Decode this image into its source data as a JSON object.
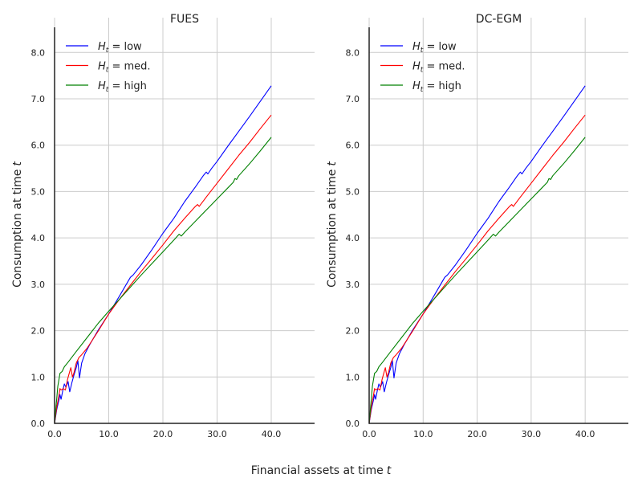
{
  "chart_data": {
    "type": "line",
    "xlabel": "Financial assets at time",
    "xlabel_var": "t",
    "ylabel": "Consumption at time",
    "ylabel_var": "t",
    "xlim": [
      0,
      48
    ],
    "ylim": [
      0,
      8.75
    ],
    "x_ticks": [
      0,
      10,
      20,
      30,
      40
    ],
    "y_ticks": [
      0,
      1,
      2,
      3,
      4,
      5,
      6,
      7,
      8
    ],
    "grid": true,
    "legend_location": "top-left",
    "panels": [
      {
        "title": "FUES",
        "series": [
          {
            "name": "low",
            "legend_prefix": "H",
            "legend_sub": "t",
            "legend_eq": " = ",
            "color": "#0000ff",
            "points": [
              [
                0,
                0
              ],
              [
                0.4,
                0.3
              ],
              [
                0.8,
                0.5
              ],
              [
                1.0,
                0.62
              ],
              [
                1.2,
                0.52
              ],
              [
                1.5,
                0.7
              ],
              [
                1.8,
                0.85
              ],
              [
                2.1,
                0.78
              ],
              [
                2.5,
                0.9
              ],
              [
                2.8,
                0.68
              ],
              [
                3.2,
                0.88
              ],
              [
                3.6,
                1.05
              ],
              [
                4.0,
                1.2
              ],
              [
                4.3,
                1.35
              ],
              [
                4.6,
                0.98
              ],
              [
                5.0,
                1.3
              ],
              [
                5.6,
                1.5
              ],
              [
                6.5,
                1.7
              ],
              [
                8,
                2.0
              ],
              [
                10,
                2.36
              ],
              [
                12,
                2.75
              ],
              [
                14,
                3.15
              ],
              [
                14.5,
                3.2
              ],
              [
                16,
                3.42
              ],
              [
                18,
                3.75
              ],
              [
                20,
                4.1
              ],
              [
                22,
                4.42
              ],
              [
                24,
                4.78
              ],
              [
                26,
                5.1
              ],
              [
                27.5,
                5.35
              ],
              [
                28,
                5.42
              ],
              [
                28.3,
                5.38
              ],
              [
                29,
                5.5
              ],
              [
                30,
                5.65
              ],
              [
                32,
                5.98
              ],
              [
                34,
                6.3
              ],
              [
                36,
                6.62
              ],
              [
                38,
                6.95
              ],
              [
                40,
                7.28
              ]
            ]
          },
          {
            "name": "med.",
            "legend_prefix": "H",
            "legend_sub": "t",
            "legend_eq": " = ",
            "color": "#ff0000",
            "points": [
              [
                0,
                0
              ],
              [
                0.4,
                0.35
              ],
              [
                0.8,
                0.6
              ],
              [
                1.0,
                0.75
              ],
              [
                1.2,
                0.72
              ],
              [
                1.6,
                0.75
              ],
              [
                2.0,
                0.72
              ],
              [
                2.4,
                0.95
              ],
              [
                2.8,
                1.12
              ],
              [
                3.0,
                1.2
              ],
              [
                3.3,
                1.0
              ],
              [
                3.6,
                1.1
              ],
              [
                4.0,
                1.3
              ],
              [
                4.5,
                1.42
              ],
              [
                5,
                1.48
              ],
              [
                6,
                1.62
              ],
              [
                8,
                1.98
              ],
              [
                10,
                2.36
              ],
              [
                12,
                2.68
              ],
              [
                14,
                2.98
              ],
              [
                16,
                3.28
              ],
              [
                18,
                3.56
              ],
              [
                20,
                3.85
              ],
              [
                22,
                4.15
              ],
              [
                24,
                4.42
              ],
              [
                26,
                4.68
              ],
              [
                26.4,
                4.72
              ],
              [
                26.7,
                4.68
              ],
              [
                28,
                4.88
              ],
              [
                30,
                5.18
              ],
              [
                32,
                5.48
              ],
              [
                34,
                5.78
              ],
              [
                36,
                6.06
              ],
              [
                38,
                6.36
              ],
              [
                40,
                6.65
              ]
            ]
          },
          {
            "name": "high",
            "legend_prefix": "H",
            "legend_sub": "t",
            "legend_eq": " = ",
            "color": "#008000",
            "points": [
              [
                0,
                0
              ],
              [
                0.3,
                0.4
              ],
              [
                0.6,
                0.8
              ],
              [
                1.0,
                1.08
              ],
              [
                1.4,
                1.12
              ],
              [
                1.8,
                1.22
              ],
              [
                2.5,
                1.32
              ],
              [
                4,
                1.55
              ],
              [
                6,
                1.85
              ],
              [
                8,
                2.15
              ],
              [
                10,
                2.42
              ],
              [
                12,
                2.68
              ],
              [
                14,
                2.94
              ],
              [
                16,
                3.2
              ],
              [
                18,
                3.45
              ],
              [
                20,
                3.7
              ],
              [
                22,
                3.95
              ],
              [
                23,
                4.08
              ],
              [
                23.4,
                4.04
              ],
              [
                24,
                4.12
              ],
              [
                26,
                4.36
              ],
              [
                28,
                4.6
              ],
              [
                30,
                4.84
              ],
              [
                32,
                5.08
              ],
              [
                33,
                5.2
              ],
              [
                33.3,
                5.28
              ],
              [
                33.6,
                5.26
              ],
              [
                34,
                5.34
              ],
              [
                36,
                5.6
              ],
              [
                38,
                5.88
              ],
              [
                40,
                6.17
              ]
            ]
          }
        ]
      },
      {
        "title": "DC-EGM",
        "series": [
          {
            "name": "low",
            "legend_prefix": "H",
            "legend_sub": "t",
            "legend_eq": " = ",
            "color": "#0000ff",
            "points": [
              [
                0,
                0
              ],
              [
                0.4,
                0.3
              ],
              [
                0.8,
                0.5
              ],
              [
                1.0,
                0.62
              ],
              [
                1.2,
                0.52
              ],
              [
                1.5,
                0.7
              ],
              [
                1.8,
                0.85
              ],
              [
                2.1,
                0.78
              ],
              [
                2.5,
                0.9
              ],
              [
                2.8,
                0.68
              ],
              [
                3.2,
                0.88
              ],
              [
                3.6,
                1.05
              ],
              [
                4.0,
                1.2
              ],
              [
                4.3,
                1.35
              ],
              [
                4.6,
                0.98
              ],
              [
                5.0,
                1.3
              ],
              [
                5.6,
                1.5
              ],
              [
                6.5,
                1.7
              ],
              [
                8,
                2.0
              ],
              [
                10,
                2.36
              ],
              [
                12,
                2.75
              ],
              [
                14,
                3.15
              ],
              [
                14.5,
                3.2
              ],
              [
                16,
                3.42
              ],
              [
                18,
                3.75
              ],
              [
                20,
                4.1
              ],
              [
                22,
                4.42
              ],
              [
                24,
                4.78
              ],
              [
                26,
                5.1
              ],
              [
                27.5,
                5.35
              ],
              [
                28,
                5.42
              ],
              [
                28.3,
                5.38
              ],
              [
                29,
                5.5
              ],
              [
                30,
                5.65
              ],
              [
                32,
                5.98
              ],
              [
                34,
                6.3
              ],
              [
                36,
                6.62
              ],
              [
                38,
                6.95
              ],
              [
                40,
                7.28
              ]
            ]
          },
          {
            "name": "med.",
            "legend_prefix": "H",
            "legend_sub": "t",
            "legend_eq": " = ",
            "color": "#ff0000",
            "points": [
              [
                0,
                0
              ],
              [
                0.4,
                0.35
              ],
              [
                0.8,
                0.6
              ],
              [
                1.0,
                0.75
              ],
              [
                1.2,
                0.72
              ],
              [
                1.6,
                0.75
              ],
              [
                2.0,
                0.72
              ],
              [
                2.4,
                0.95
              ],
              [
                2.8,
                1.12
              ],
              [
                3.0,
                1.2
              ],
              [
                3.3,
                1.0
              ],
              [
                3.6,
                1.1
              ],
              [
                4.0,
                1.3
              ],
              [
                4.5,
                1.42
              ],
              [
                5,
                1.48
              ],
              [
                6,
                1.62
              ],
              [
                8,
                1.98
              ],
              [
                10,
                2.36
              ],
              [
                12,
                2.68
              ],
              [
                14,
                2.98
              ],
              [
                16,
                3.28
              ],
              [
                18,
                3.56
              ],
              [
                20,
                3.85
              ],
              [
                22,
                4.15
              ],
              [
                24,
                4.42
              ],
              [
                26,
                4.68
              ],
              [
                26.4,
                4.72
              ],
              [
                26.7,
                4.68
              ],
              [
                28,
                4.88
              ],
              [
                30,
                5.18
              ],
              [
                32,
                5.48
              ],
              [
                34,
                5.78
              ],
              [
                36,
                6.06
              ],
              [
                38,
                6.36
              ],
              [
                40,
                6.65
              ]
            ]
          },
          {
            "name": "high",
            "legend_prefix": "H",
            "legend_sub": "t",
            "legend_eq": " = ",
            "color": "#008000",
            "points": [
              [
                0,
                0
              ],
              [
                0.3,
                0.4
              ],
              [
                0.6,
                0.8
              ],
              [
                1.0,
                1.08
              ],
              [
                1.4,
                1.12
              ],
              [
                1.8,
                1.22
              ],
              [
                2.5,
                1.32
              ],
              [
                4,
                1.55
              ],
              [
                6,
                1.85
              ],
              [
                8,
                2.15
              ],
              [
                10,
                2.42
              ],
              [
                12,
                2.68
              ],
              [
                14,
                2.94
              ],
              [
                16,
                3.2
              ],
              [
                18,
                3.45
              ],
              [
                20,
                3.7
              ],
              [
                22,
                3.95
              ],
              [
                23,
                4.08
              ],
              [
                23.4,
                4.04
              ],
              [
                24,
                4.12
              ],
              [
                26,
                4.36
              ],
              [
                28,
                4.6
              ],
              [
                30,
                4.84
              ],
              [
                32,
                5.08
              ],
              [
                33,
                5.2
              ],
              [
                33.3,
                5.28
              ],
              [
                33.6,
                5.26
              ],
              [
                34,
                5.34
              ],
              [
                36,
                5.6
              ],
              [
                38,
                5.88
              ],
              [
                40,
                6.17
              ]
            ]
          }
        ]
      }
    ]
  }
}
